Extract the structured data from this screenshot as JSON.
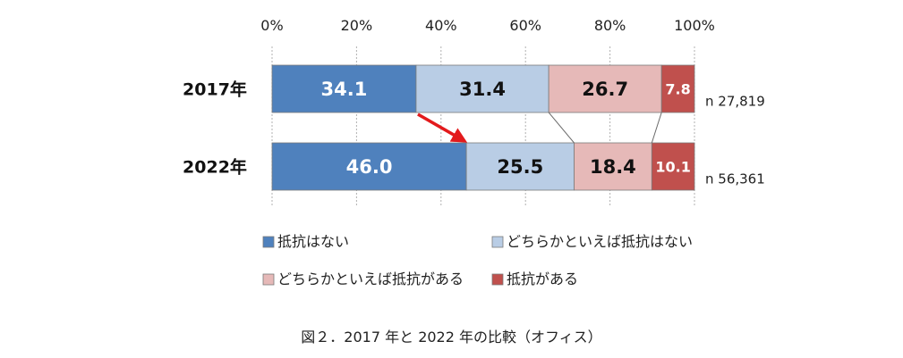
{
  "chart_data": {
    "type": "bar",
    "stacked": true,
    "orientation": "horizontal",
    "x_axis": {
      "range": [
        0,
        100
      ],
      "ticks": [
        "0%",
        "20%",
        "40%",
        "60%",
        "80%",
        "100%"
      ],
      "grid": true,
      "position": "top"
    },
    "categories": [
      "2017年",
      "2022年"
    ],
    "sample_sizes": [
      "n 27,819",
      "n 56,361"
    ],
    "series": [
      {
        "name": "抵抗はない",
        "values": [
          34.1,
          46.0
        ],
        "color": "#4f81bd",
        "label_color": "#ffffff"
      },
      {
        "name": "どちらかといえば抵抗はない",
        "values": [
          31.4,
          25.5
        ],
        "color": "#b9cde5",
        "label_color": "#111111"
      },
      {
        "name": "どちらかといえば抵抗がある",
        "values": [
          26.7,
          18.4
        ],
        "color": "#e6b9b8",
        "label_color": "#111111"
      },
      {
        "name": "抵抗がある",
        "values": [
          7.8,
          10.1
        ],
        "color": "#c0504d",
        "label_color": "#ffffff"
      }
    ],
    "data_labels": [
      [
        "34.1",
        "31.4",
        "26.7",
        "7.8"
      ],
      [
        "46.0",
        "25.5",
        "18.4",
        "10.1"
      ]
    ],
    "legend": {
      "placement": "bottom",
      "columns": 2
    },
    "annotation": {
      "type": "arrow",
      "color": "#e31a1c"
    }
  },
  "caption": "図２．2017 年と 2022 年の比較（オフィス）"
}
